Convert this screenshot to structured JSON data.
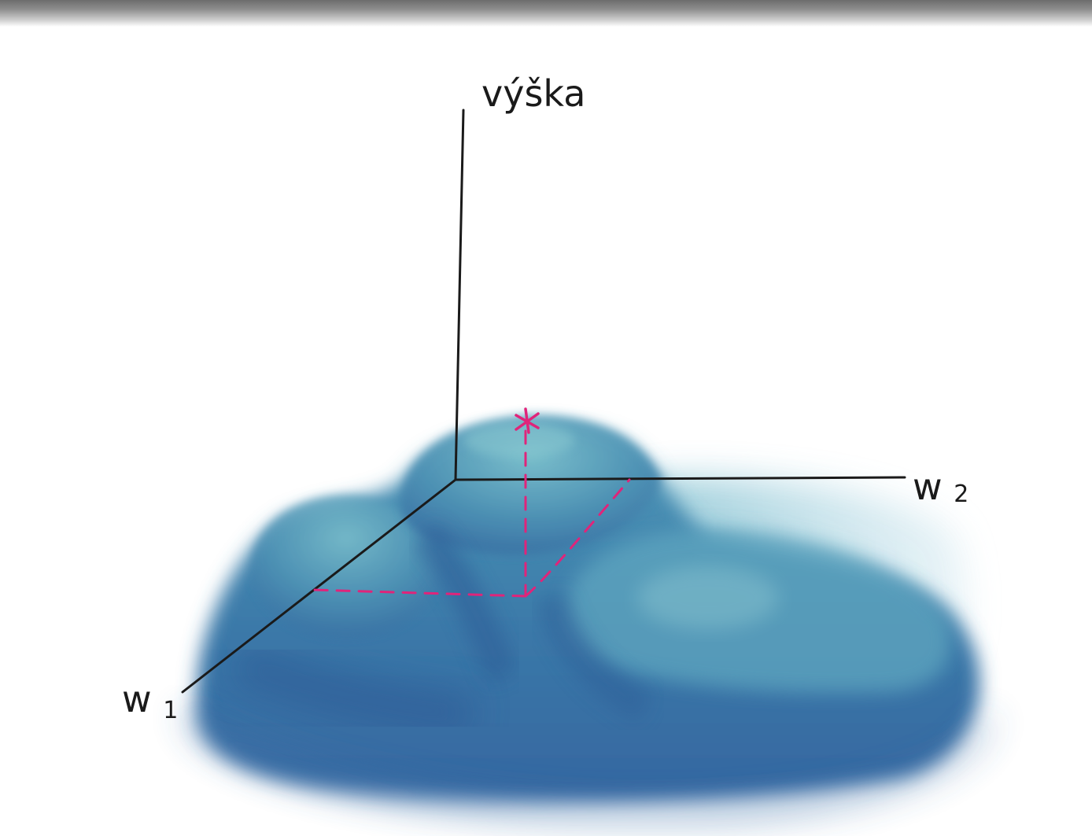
{
  "axes": {
    "vertical": {
      "label": "výška"
    },
    "w1": {
      "label": "w",
      "subscript": "1"
    },
    "w2": {
      "label": "w",
      "subscript": "2"
    }
  },
  "colors": {
    "surface_dark": "#2f5f9a",
    "surface_mid": "#3f84ad",
    "surface_light": "#6fb3c6",
    "surface_pale": "#cfe5ee",
    "axis": "#1a1a1a",
    "highlight": "#e0247a"
  },
  "icons": {
    "peak_marker": "asterisk-icon"
  }
}
